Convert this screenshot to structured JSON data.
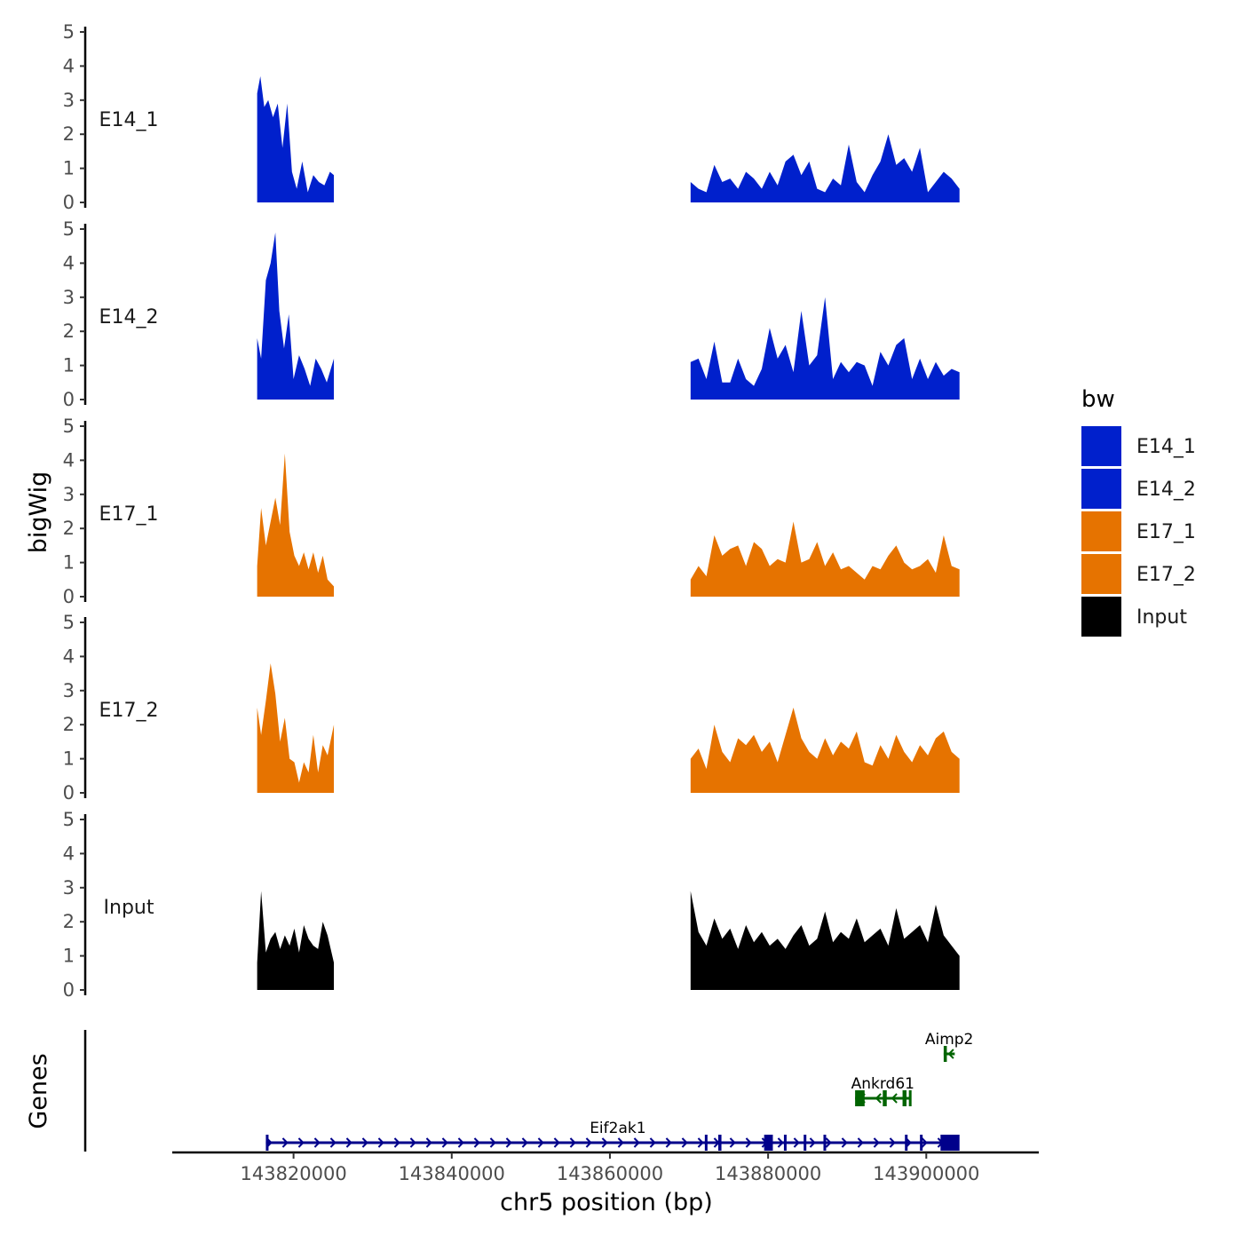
{
  "chart_data": {
    "type": "area",
    "chromosome": "chr5",
    "xlabel": "chr5 position (bp)",
    "ylabel": "bigWig",
    "genes_axis_label": "Genes",
    "xlim": [
      143805000,
      143914000
    ],
    "x_ticks": [
      143820000,
      143840000,
      143860000,
      143880000,
      143900000
    ],
    "x_tick_labels": [
      "143820000",
      "143840000",
      "143860000",
      "143880000",
      "143900000"
    ],
    "ylim": [
      0,
      5
    ],
    "y_ticks": [
      0,
      1,
      2,
      3,
      4,
      5
    ],
    "y_tick_labels": [
      "0",
      "1",
      "2",
      "3",
      "4",
      "5"
    ],
    "legend": {
      "title": "bw",
      "position": "right",
      "entries": [
        {
          "label": "E14_1",
          "color": "#0020CC"
        },
        {
          "label": "E14_2",
          "color": "#0020CC"
        },
        {
          "label": "E17_1",
          "color": "#E67300"
        },
        {
          "label": "E17_2",
          "color": "#E67300"
        },
        {
          "label": "Input",
          "color": "#000000"
        }
      ]
    },
    "tracks": [
      {
        "name": "E14_1",
        "color": "#0020CC",
        "segments": [
          {
            "positions": [
              143815400,
              143815800,
              143816300,
              143816800,
              143817400,
              143818000,
              143818600,
              143819200,
              143819800,
              143820400,
              143821100,
              143821800,
              143822500,
              143823200,
              143823900,
              143824600,
              143825100
            ],
            "values": [
              3.2,
              3.7,
              2.8,
              3.0,
              2.5,
              2.9,
              1.6,
              2.9,
              0.9,
              0.4,
              1.2,
              0.3,
              0.8,
              0.6,
              0.5,
              0.9,
              0.8
            ]
          },
          {
            "positions": [
              143870200,
              143871200,
              143872200,
              143873200,
              143874200,
              143875200,
              143876200,
              143877200,
              143878200,
              143879200,
              143880200,
              143881200,
              143882200,
              143883200,
              143884200,
              143885200,
              143886200,
              143887200,
              143888200,
              143889200,
              143890200,
              143891200,
              143892200,
              143893200,
              143894200,
              143895200,
              143896200,
              143897200,
              143898200,
              143899200,
              143900200,
              143901200,
              143902200,
              143903200,
              143904200
            ],
            "values": [
              0.6,
              0.4,
              0.3,
              1.1,
              0.6,
              0.7,
              0.4,
              0.9,
              0.7,
              0.4,
              0.9,
              0.5,
              1.2,
              1.4,
              0.8,
              1.2,
              0.4,
              0.3,
              0.7,
              0.5,
              1.7,
              0.6,
              0.3,
              0.8,
              1.2,
              2.0,
              1.1,
              1.3,
              0.9,
              1.6,
              0.3,
              0.6,
              0.9,
              0.7,
              0.4
            ]
          }
        ]
      },
      {
        "name": "E14_2",
        "color": "#0020CC",
        "segments": [
          {
            "positions": [
              143815400,
              143815900,
              143816500,
              143817100,
              143817700,
              143818200,
              143818800,
              143819400,
              143820000,
              143820700,
              143821400,
              143822100,
              143822800,
              143823500,
              143824200,
              143825100
            ],
            "values": [
              1.8,
              1.2,
              3.5,
              4.0,
              4.9,
              2.6,
              1.5,
              2.5,
              0.6,
              1.3,
              0.9,
              0.4,
              1.2,
              0.9,
              0.5,
              1.2
            ]
          },
          {
            "positions": [
              143870200,
              143871200,
              143872200,
              143873200,
              143874200,
              143875200,
              143876200,
              143877200,
              143878200,
              143879200,
              143880200,
              143881200,
              143882200,
              143883200,
              143884200,
              143885200,
              143886200,
              143887200,
              143888200,
              143889200,
              143890200,
              143891200,
              143892200,
              143893200,
              143894200,
              143895200,
              143896200,
              143897200,
              143898200,
              143899200,
              143900200,
              143901200,
              143902200,
              143903200,
              143904200
            ],
            "values": [
              1.1,
              1.2,
              0.6,
              1.7,
              0.5,
              0.5,
              1.2,
              0.6,
              0.4,
              0.9,
              2.1,
              1.2,
              1.6,
              0.8,
              2.6,
              1.0,
              1.3,
              3.0,
              0.6,
              1.1,
              0.8,
              1.1,
              1.0,
              0.4,
              1.4,
              1.0,
              1.6,
              1.8,
              0.6,
              1.2,
              0.6,
              1.1,
              0.7,
              0.9,
              0.8
            ]
          }
        ]
      },
      {
        "name": "E17_1",
        "color": "#E67300",
        "segments": [
          {
            "positions": [
              143815400,
              143815900,
              143816500,
              143817100,
              143817700,
              143818300,
              143818900,
              143819500,
              143820100,
              143820700,
              143821300,
              143821900,
              143822500,
              143823100,
              143823700,
              143824300,
              143825100
            ],
            "values": [
              0.9,
              2.6,
              1.5,
              2.2,
              2.9,
              2.1,
              4.2,
              1.9,
              1.2,
              0.9,
              1.3,
              0.8,
              1.3,
              0.7,
              1.2,
              0.5,
              0.3
            ]
          },
          {
            "positions": [
              143870200,
              143871200,
              143872200,
              143873200,
              143874200,
              143875200,
              143876200,
              143877200,
              143878200,
              143879200,
              143880200,
              143881200,
              143882200,
              143883200,
              143884200,
              143885200,
              143886200,
              143887200,
              143888200,
              143889200,
              143890200,
              143891200,
              143892200,
              143893200,
              143894200,
              143895200,
              143896200,
              143897200,
              143898200,
              143899200,
              143900200,
              143901200,
              143902200,
              143903200,
              143904200
            ],
            "values": [
              0.5,
              0.9,
              0.6,
              1.8,
              1.2,
              1.4,
              1.5,
              0.9,
              1.6,
              1.4,
              0.9,
              1.1,
              1.0,
              2.2,
              1.0,
              1.1,
              1.6,
              0.9,
              1.3,
              0.8,
              0.9,
              0.7,
              0.5,
              0.9,
              0.8,
              1.2,
              1.5,
              1.0,
              0.8,
              0.9,
              1.1,
              0.7,
              1.8,
              0.9,
              0.8
            ]
          }
        ]
      },
      {
        "name": "E17_2",
        "color": "#E67300",
        "segments": [
          {
            "positions": [
              143815400,
              143815900,
              143816500,
              143817100,
              143817700,
              143818300,
              143818900,
              143819500,
              143820100,
              143820700,
              143821300,
              143821900,
              143822500,
              143823100,
              143823700,
              143824300,
              143825100
            ],
            "values": [
              2.5,
              1.7,
              2.7,
              3.8,
              2.9,
              1.5,
              2.2,
              1.0,
              0.9,
              0.3,
              0.9,
              0.6,
              1.7,
              0.6,
              1.4,
              1.1,
              2.0
            ]
          },
          {
            "positions": [
              143870200,
              143871200,
              143872200,
              143873200,
              143874200,
              143875200,
              143876200,
              143877200,
              143878200,
              143879200,
              143880200,
              143881200,
              143882200,
              143883200,
              143884200,
              143885200,
              143886200,
              143887200,
              143888200,
              143889200,
              143890200,
              143891200,
              143892200,
              143893200,
              143894200,
              143895200,
              143896200,
              143897200,
              143898200,
              143899200,
              143900200,
              143901200,
              143902200,
              143903200,
              143904200
            ],
            "values": [
              1.0,
              1.3,
              0.7,
              2.0,
              1.2,
              0.9,
              1.6,
              1.4,
              1.7,
              1.2,
              1.5,
              0.9,
              1.7,
              2.5,
              1.6,
              1.2,
              1.0,
              1.6,
              1.1,
              1.5,
              1.3,
              1.8,
              0.9,
              0.8,
              1.4,
              1.0,
              1.7,
              1.2,
              0.9,
              1.4,
              1.1,
              1.6,
              1.8,
              1.2,
              1.0
            ]
          }
        ]
      },
      {
        "name": "Input",
        "color": "#000000",
        "segments": [
          {
            "positions": [
              143815400,
              143815900,
              143816500,
              143817100,
              143817700,
              143818300,
              143818900,
              143819500,
              143820100,
              143820700,
              143821300,
              143821900,
              143822500,
              143823100,
              143823700,
              143824300,
              143825100
            ],
            "values": [
              0.8,
              2.9,
              1.1,
              1.5,
              1.7,
              1.2,
              1.6,
              1.3,
              1.8,
              1.1,
              1.9,
              1.5,
              1.3,
              1.2,
              2.0,
              1.6,
              0.8
            ]
          },
          {
            "positions": [
              143870200,
              143871200,
              143872200,
              143873200,
              143874200,
              143875200,
              143876200,
              143877200,
              143878200,
              143879200,
              143880200,
              143881200,
              143882200,
              143883200,
              143884200,
              143885200,
              143886200,
              143887200,
              143888200,
              143889200,
              143890200,
              143891200,
              143892200,
              143893200,
              143894200,
              143895200,
              143896200,
              143897200,
              143898200,
              143899200,
              143900200,
              143901200,
              143902200,
              143903200,
              143904200
            ],
            "values": [
              2.9,
              1.7,
              1.3,
              2.1,
              1.5,
              1.8,
              1.2,
              1.9,
              1.4,
              1.7,
              1.3,
              1.5,
              1.2,
              1.6,
              1.9,
              1.3,
              1.5,
              2.3,
              1.4,
              1.7,
              1.5,
              2.1,
              1.4,
              1.6,
              1.8,
              1.3,
              2.4,
              1.5,
              1.7,
              1.9,
              1.4,
              2.5,
              1.6,
              1.3,
              1.0
            ]
          }
        ]
      }
    ],
    "genes": [
      {
        "name": "Eif2ak1",
        "start": 143816500,
        "end": 143903000,
        "strand": "+",
        "row": 0,
        "color": "#00008B",
        "exons": [
          [
            143816500,
            143816800
          ],
          [
            143872000,
            143872300
          ],
          [
            143873700,
            143874100
          ],
          [
            143879500,
            143880600
          ],
          [
            143882000,
            143882200
          ],
          [
            143884500,
            143884800
          ],
          [
            143887000,
            143887200
          ],
          [
            143897300,
            143897500
          ],
          [
            143899200,
            143899400
          ],
          [
            143901800,
            143904200
          ]
        ]
      },
      {
        "name": "Ankrd61",
        "start": 143891000,
        "end": 143898000,
        "strand": "-",
        "row": 1,
        "color": "#006400",
        "exons": [
          [
            143891000,
            143892200
          ],
          [
            143894500,
            143895000
          ],
          [
            143897000,
            143897500
          ],
          [
            143897800,
            143898000
          ]
        ]
      },
      {
        "name": "Aimp2",
        "start": 143902200,
        "end": 143903600,
        "strand": "-",
        "row": 2,
        "color": "#006400",
        "exons": [
          [
            143902200,
            143902600
          ]
        ]
      }
    ]
  }
}
